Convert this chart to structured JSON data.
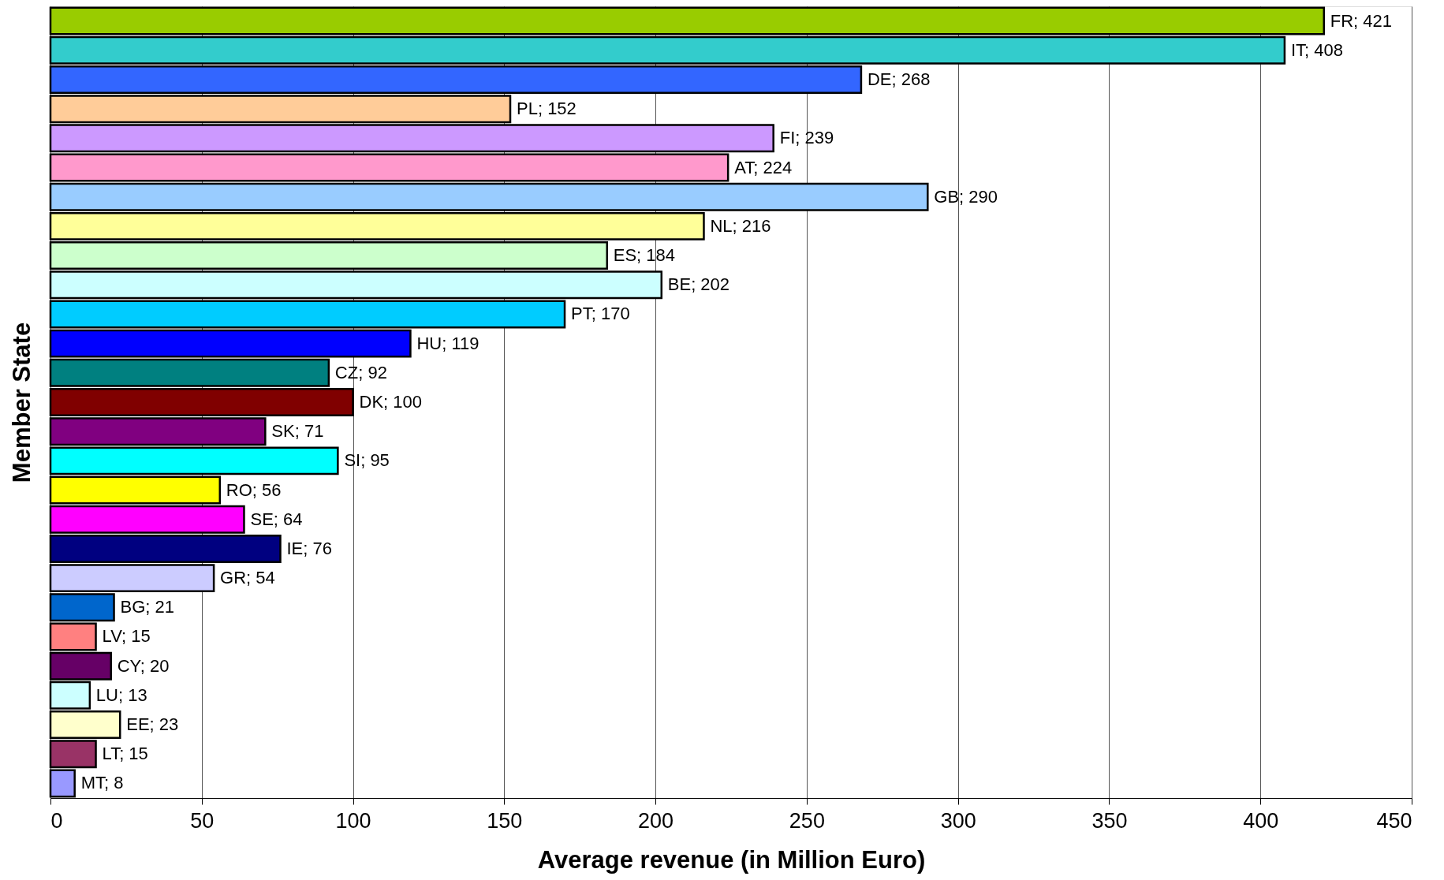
{
  "chart_data": {
    "type": "bar",
    "orientation": "horizontal",
    "xlabel": "Average revenue (in Million Euro)",
    "ylabel": "Member State",
    "categories": [
      null,
      null,
      null,
      null,
      null,
      null,
      null,
      null,
      null,
      null,
      null,
      null,
      null,
      null,
      null,
      null,
      null,
      null,
      null,
      null,
      null,
      null,
      null,
      null,
      null,
      null,
      null
    ],
    "values": [
      421,
      408,
      268,
      152,
      239,
      224,
      290,
      216,
      184,
      202,
      170,
      119,
      92,
      100,
      71,
      95,
      56,
      64,
      76,
      54,
      21,
      15,
      20,
      13,
      23,
      15,
      8
    ],
    "value_labels": [
      "FR; 421",
      "IT; 408",
      "DE; 268",
      "PL; 152",
      "FI; 239",
      "AT; 224",
      "GB; 290",
      "NL; 216",
      "ES; 184",
      "BE; 202",
      "PT; 170",
      "HU; 119",
      "CZ; 92",
      "DK; 100",
      "SK; 71",
      "SI; 95",
      "RO; 56",
      "SE; 64",
      "IE; 76",
      "GR; 54",
      "BG; 21",
      "LV; 15",
      "CY; 20",
      "LU; 13",
      "EE; 23",
      "LT; 15",
      "MT; 8"
    ],
    "colors": [
      "#99cc00",
      "#33cccc",
      "#3366ff",
      "#ffcc99",
      "#cc99ff",
      "#ff99cc",
      "#99ccff",
      "#ffff99",
      "#ccffcc",
      "#ccffff",
      "#00ccff",
      "#0000ff",
      "#008080",
      "#800000",
      "#800080",
      "#00ffff",
      "#ffff00",
      "#ff00ff",
      "#000080",
      "#ccccff",
      "#0066cc",
      "#ff8080",
      "#660066",
      "#ccffff",
      "#ffffcc",
      "#993366",
      "#9999ff"
    ],
    "xlim": [
      0,
      450
    ],
    "xticks": [
      0,
      50,
      100,
      150,
      200,
      250,
      300,
      350,
      400,
      450
    ],
    "grid": "x",
    "tick_labels": "x"
  }
}
